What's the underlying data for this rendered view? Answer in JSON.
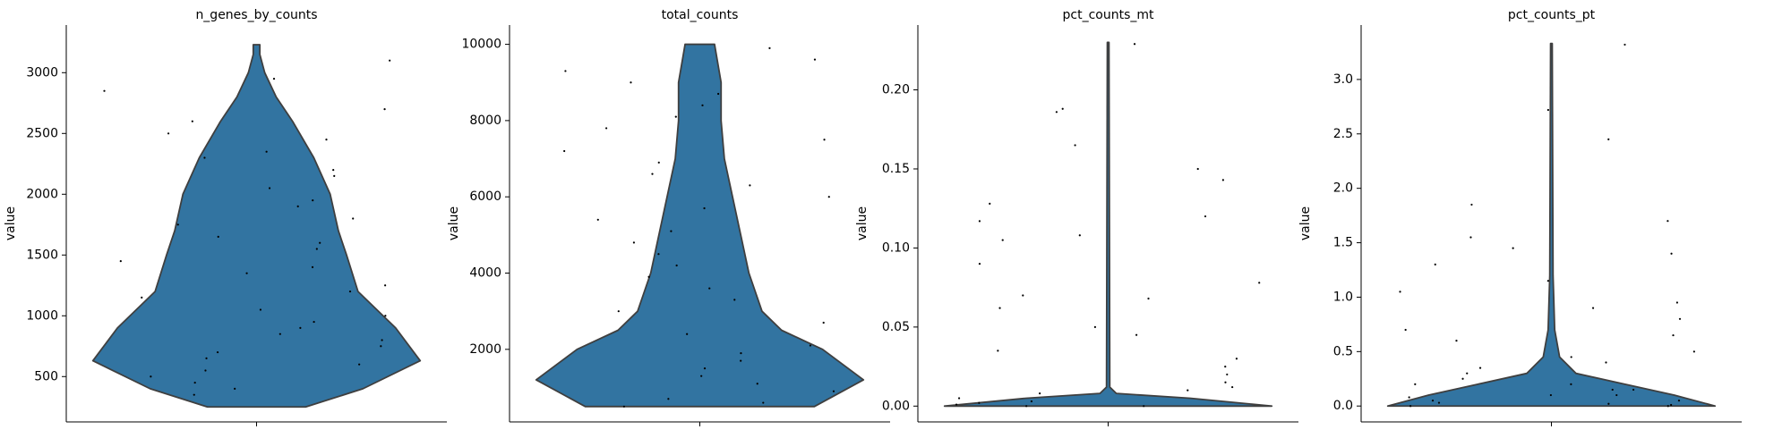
{
  "chart_data": [
    {
      "type": "violin",
      "title": "n_genes_by_counts",
      "ylabel": "value",
      "color": "#3274a1",
      "ylim": [
        127,
        3392
      ],
      "yticks": [
        500,
        1000,
        1500,
        2000,
        2500,
        3000
      ],
      "violin": {
        "y": [
          250,
          400,
          630,
          900,
          1200,
          1500,
          1700,
          2000,
          2300,
          2600,
          2800,
          3000,
          3150,
          3230
        ],
        "width": [
          0.3,
          0.65,
          1.0,
          0.85,
          0.62,
          0.55,
          0.5,
          0.45,
          0.35,
          0.22,
          0.12,
          0.05,
          0.02,
          0.02
        ]
      },
      "points": [
        2850,
        2700,
        2600,
        2500,
        2450,
        2350,
        2300,
        2200,
        2150,
        2050,
        1950,
        1900,
        1800,
        1750,
        1650,
        1600,
        1550,
        1450,
        1400,
        1350,
        1250,
        1200,
        1150,
        1050,
        1000,
        950,
        900,
        850,
        800,
        750,
        700,
        650,
        600,
        550,
        500,
        450,
        400,
        350,
        3100,
        2950
      ]
    },
    {
      "type": "violin",
      "title": "total_counts",
      "ylabel": "value",
      "color": "#3274a1",
      "ylim": [
        97,
        10506
      ],
      "yticks": [
        2000,
        4000,
        6000,
        8000,
        10000
      ],
      "violin": {
        "y": [
          500,
          1200,
          2000,
          2500,
          3000,
          4000,
          5000,
          6000,
          7000,
          8000,
          9000,
          10000
        ],
        "width": [
          0.7,
          1.0,
          0.75,
          0.5,
          0.38,
          0.3,
          0.25,
          0.2,
          0.15,
          0.13,
          0.13,
          0.09
        ]
      },
      "points": [
        9900,
        9600,
        9300,
        9000,
        8700,
        8400,
        8100,
        7800,
        7500,
        7200,
        6900,
        6600,
        6300,
        6000,
        5700,
        5400,
        5100,
        4800,
        4500,
        4200,
        3900,
        3600,
        3300,
        3000,
        2700,
        2400,
        2100,
        1900,
        1700,
        1500,
        1300,
        1100,
        900,
        700,
        600,
        500
      ]
    },
    {
      "type": "violin",
      "title": "pct_counts_mt",
      "ylabel": "value",
      "color": "#3274a1",
      "ylim": [
        -0.01,
        0.241
      ],
      "yticks": [
        {
          "value": 0,
          "label": "0.00"
        },
        0.05,
        {
          "value": 0.1,
          "label": "0.10"
        },
        0.15,
        {
          "value": 0.2,
          "label": "0.20"
        }
      ],
      "violin": {
        "y": [
          0,
          0.005,
          0.008,
          0.012,
          0.23
        ],
        "width": [
          1.0,
          0.5,
          0.05,
          0.01,
          0.005
        ]
      },
      "points": [
        0.229,
        0.188,
        0.186,
        0.165,
        0.15,
        0.143,
        0.128,
        0.12,
        0.117,
        0.108,
        0.105,
        0.09,
        0.078,
        0.07,
        0.068,
        0.062,
        0.05,
        0.045,
        0.035,
        0.03,
        0.025,
        0.02,
        0.015,
        0.012,
        0.01,
        0.008,
        0.005,
        0.003,
        0.002,
        0.001,
        0,
        0
      ]
    },
    {
      "type": "violin",
      "title": "pct_counts_pt",
      "ylabel": "value",
      "color": "#3274a1",
      "ylim": [
        -0.146,
        3.5
      ],
      "yticks": [
        {
          "value": 0,
          "label": "0.0"
        },
        0.5,
        {
          "value": 1,
          "label": "1.0"
        },
        1.5,
        {
          "value": 2,
          "label": "2.0"
        },
        2.5,
        {
          "value": 3,
          "label": "3.0"
        }
      ],
      "violin": {
        "y": [
          0,
          0.1,
          0.2,
          0.3,
          0.45,
          0.7,
          1.2,
          3.33
        ],
        "width": [
          1.0,
          0.75,
          0.45,
          0.15,
          0.05,
          0.02,
          0.01,
          0.005
        ]
      },
      "points": [
        3.32,
        2.72,
        2.45,
        1.85,
        1.7,
        1.55,
        1.45,
        1.4,
        1.3,
        1.15,
        1.05,
        0.95,
        0.9,
        0.8,
        0.7,
        0.65,
        0.6,
        0.5,
        0.45,
        0.4,
        0.35,
        0.3,
        0.25,
        0.2,
        0.2,
        0.15,
        0.15,
        0.1,
        0.1,
        0.08,
        0.05,
        0.05,
        0.03,
        0.02,
        0.01,
        0,
        0
      ]
    }
  ]
}
